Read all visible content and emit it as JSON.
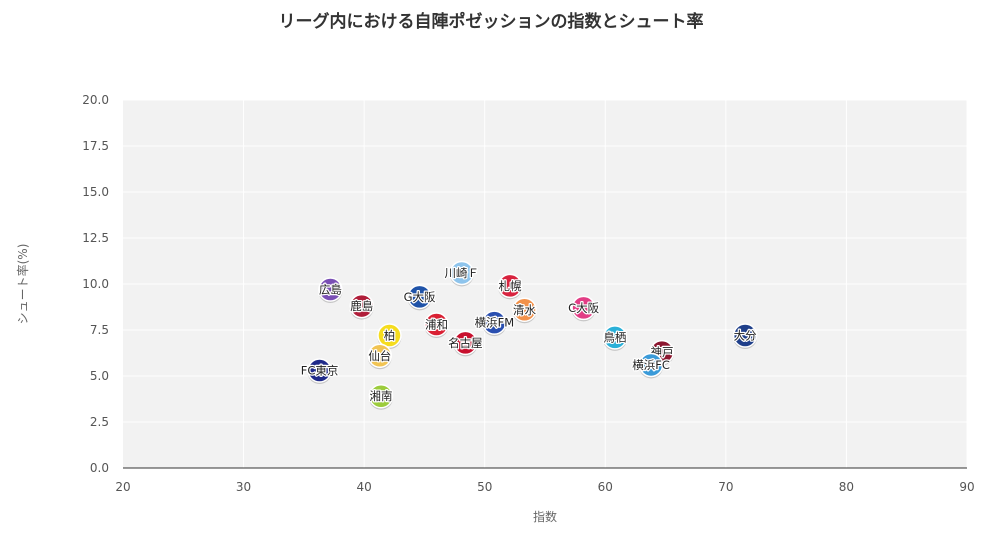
{
  "chart_data": {
    "type": "scatter",
    "title": "リーグ内における自陣ポゼッションの指数とシュート率",
    "xlabel": "指数",
    "ylabel": "シュート率(%)",
    "xlim": [
      20,
      90
    ],
    "ylim": [
      0,
      20
    ],
    "x_ticks": [
      20,
      30,
      40,
      50,
      60,
      70,
      80,
      90
    ],
    "y_ticks": [
      0.0,
      2.5,
      5.0,
      7.5,
      10.0,
      12.5,
      15.0,
      17.5,
      20.0
    ],
    "y_tick_labels": [
      "0.0",
      "2.5",
      "5.0",
      "7.5",
      "10.0",
      "12.5",
      "15.0",
      "17.5",
      "20.0"
    ],
    "grid": true,
    "legend": "none",
    "background": "#f2f2f2",
    "points": [
      {
        "label": "広島",
        "x": 37.2,
        "y": 9.7,
        "color": "#7a4fb5"
      },
      {
        "label": "鹿島",
        "x": 39.8,
        "y": 8.8,
        "color": "#b01e3a"
      },
      {
        "label": "柏",
        "x": 42.1,
        "y": 7.2,
        "color": "#f5dc1e"
      },
      {
        "label": "仙台",
        "x": 41.3,
        "y": 6.1,
        "color": "#f1c453"
      },
      {
        "label": "FC東京",
        "x": 36.3,
        "y": 5.3,
        "color": "#1f2a8a"
      },
      {
        "label": "湘南",
        "x": 41.4,
        "y": 3.9,
        "color": "#9ccc3c"
      },
      {
        "label": "G大阪",
        "x": 44.6,
        "y": 9.3,
        "color": "#1f53a8"
      },
      {
        "label": "浦和",
        "x": 46.0,
        "y": 7.8,
        "color": "#d92033"
      },
      {
        "label": "川崎Ｆ",
        "x": 48.1,
        "y": 10.6,
        "color": "#8ec4ec"
      },
      {
        "label": "名古屋",
        "x": 48.4,
        "y": 6.8,
        "color": "#c8102e"
      },
      {
        "label": "横浜FM",
        "x": 50.8,
        "y": 7.9,
        "color": "#2a4fb0"
      },
      {
        "label": "札幌",
        "x": 52.1,
        "y": 9.9,
        "color": "#d8233f"
      },
      {
        "label": "清水",
        "x": 53.3,
        "y": 8.6,
        "color": "#f2914a"
      },
      {
        "label": "C大阪",
        "x": 58.2,
        "y": 8.7,
        "color": "#e23d85"
      },
      {
        "label": "鳥栖",
        "x": 60.8,
        "y": 7.1,
        "color": "#2ab0d8"
      },
      {
        "label": "神戸",
        "x": 64.7,
        "y": 6.3,
        "color": "#8c1730"
      },
      {
        "label": "横浜FC",
        "x": 63.8,
        "y": 5.6,
        "color": "#3a9ad8"
      },
      {
        "label": "大分",
        "x": 71.6,
        "y": 7.2,
        "color": "#1f3f8a"
      }
    ]
  }
}
